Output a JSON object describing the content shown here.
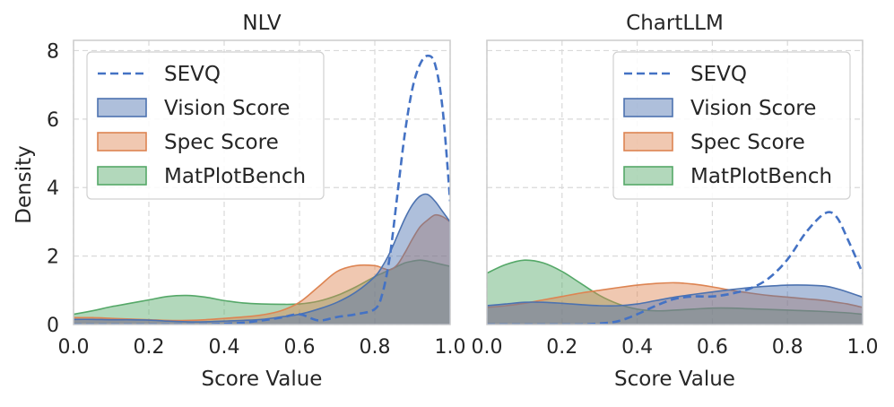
{
  "figure": {
    "ylabel": "Density",
    "colors": {
      "sevq": "#4472C4",
      "vision": "#4C72B0",
      "spec": "#DD8452",
      "matplot": "#55A868",
      "grid": "#d9d9d9",
      "spine": "#cccccc"
    }
  },
  "chart_data": [
    {
      "type": "area",
      "title": "NLV",
      "xlabel": "Score Value",
      "ylabel": "Density",
      "xlim": [
        0.0,
        1.0
      ],
      "ylim": [
        0,
        8.3
      ],
      "xticks": [
        "0.0",
        "0.2",
        "0.4",
        "0.6",
        "0.8",
        "1.0"
      ],
      "yticks": [
        "0",
        "2",
        "4",
        "6",
        "8"
      ],
      "grid": true,
      "legend": "top-left",
      "x": [
        0.0,
        0.05,
        0.1,
        0.15,
        0.2,
        0.25,
        0.3,
        0.35,
        0.4,
        0.45,
        0.5,
        0.55,
        0.6,
        0.65,
        0.7,
        0.75,
        0.8,
        0.82,
        0.84,
        0.86,
        0.88,
        0.9,
        0.92,
        0.94,
        0.96,
        0.98,
        1.0
      ],
      "series": [
        {
          "name": "SEVQ",
          "style": "dashed-line",
          "values": [
            0.0,
            0.0,
            0.0,
            0.0,
            0.0,
            0.0,
            0.0,
            0.0,
            0.02,
            0.05,
            0.12,
            0.2,
            0.3,
            0.12,
            0.22,
            0.3,
            0.45,
            0.9,
            2.0,
            3.8,
            5.6,
            6.9,
            7.6,
            7.85,
            7.6,
            6.3,
            3.6
          ]
        },
        {
          "name": "Vision Score",
          "style": "fill",
          "values": [
            0.15,
            0.15,
            0.14,
            0.14,
            0.13,
            0.1,
            0.08,
            0.08,
            0.1,
            0.12,
            0.15,
            0.22,
            0.3,
            0.45,
            0.65,
            0.95,
            1.4,
            1.7,
            2.1,
            2.6,
            3.1,
            3.5,
            3.75,
            3.8,
            3.6,
            3.3,
            3.0
          ]
        },
        {
          "name": "Spec Score",
          "style": "fill",
          "values": [
            0.2,
            0.2,
            0.18,
            0.16,
            0.14,
            0.12,
            0.12,
            0.14,
            0.18,
            0.22,
            0.28,
            0.4,
            0.65,
            1.1,
            1.55,
            1.72,
            1.72,
            1.65,
            1.6,
            1.75,
            2.1,
            2.5,
            2.85,
            3.05,
            3.2,
            3.15,
            3.0
          ]
        },
        {
          "name": "MatPlotBench",
          "style": "fill",
          "values": [
            0.3,
            0.4,
            0.52,
            0.62,
            0.72,
            0.82,
            0.85,
            0.8,
            0.7,
            0.63,
            0.6,
            0.59,
            0.6,
            0.68,
            0.85,
            1.1,
            1.4,
            1.5,
            1.6,
            1.7,
            1.8,
            1.85,
            1.88,
            1.85,
            1.8,
            1.75,
            1.7
          ]
        }
      ]
    },
    {
      "type": "area",
      "title": "ChartLLM",
      "xlabel": "Score Value",
      "ylabel": "",
      "xlim": [
        0.0,
        1.0
      ],
      "ylim": [
        0,
        8.3
      ],
      "xticks": [
        "0.0",
        "0.2",
        "0.4",
        "0.6",
        "0.8",
        "1.0"
      ],
      "yticks": [
        "0",
        "2",
        "4",
        "6",
        "8"
      ],
      "grid": true,
      "legend": "top-right",
      "x": [
        0.0,
        0.05,
        0.1,
        0.15,
        0.2,
        0.25,
        0.3,
        0.35,
        0.4,
        0.45,
        0.5,
        0.55,
        0.6,
        0.65,
        0.7,
        0.75,
        0.8,
        0.85,
        0.9,
        0.93,
        0.96,
        1.0
      ],
      "series": [
        {
          "name": "SEVQ",
          "style": "dashed-line",
          "values": [
            0.0,
            0.0,
            0.0,
            0.0,
            0.0,
            0.0,
            0.03,
            0.1,
            0.3,
            0.55,
            0.75,
            0.82,
            0.82,
            0.9,
            1.05,
            1.35,
            1.9,
            2.7,
            3.25,
            3.15,
            2.5,
            1.5
          ]
        },
        {
          "name": "Vision Score",
          "style": "fill",
          "values": [
            0.55,
            0.6,
            0.65,
            0.65,
            0.62,
            0.58,
            0.55,
            0.55,
            0.6,
            0.7,
            0.8,
            0.88,
            0.95,
            1.02,
            1.08,
            1.12,
            1.15,
            1.15,
            1.12,
            1.05,
            0.95,
            0.8
          ]
        },
        {
          "name": "Spec Score",
          "style": "fill",
          "values": [
            0.5,
            0.55,
            0.62,
            0.72,
            0.82,
            0.92,
            1.0,
            1.08,
            1.15,
            1.2,
            1.22,
            1.18,
            1.1,
            1.0,
            0.92,
            0.85,
            0.8,
            0.75,
            0.7,
            0.65,
            0.6,
            0.5
          ]
        },
        {
          "name": "MatPlotBench",
          "style": "fill",
          "values": [
            1.5,
            1.75,
            1.88,
            1.8,
            1.55,
            1.2,
            0.85,
            0.6,
            0.45,
            0.4,
            0.42,
            0.45,
            0.48,
            0.48,
            0.46,
            0.44,
            0.42,
            0.4,
            0.38,
            0.36,
            0.34,
            0.3
          ]
        }
      ]
    }
  ]
}
